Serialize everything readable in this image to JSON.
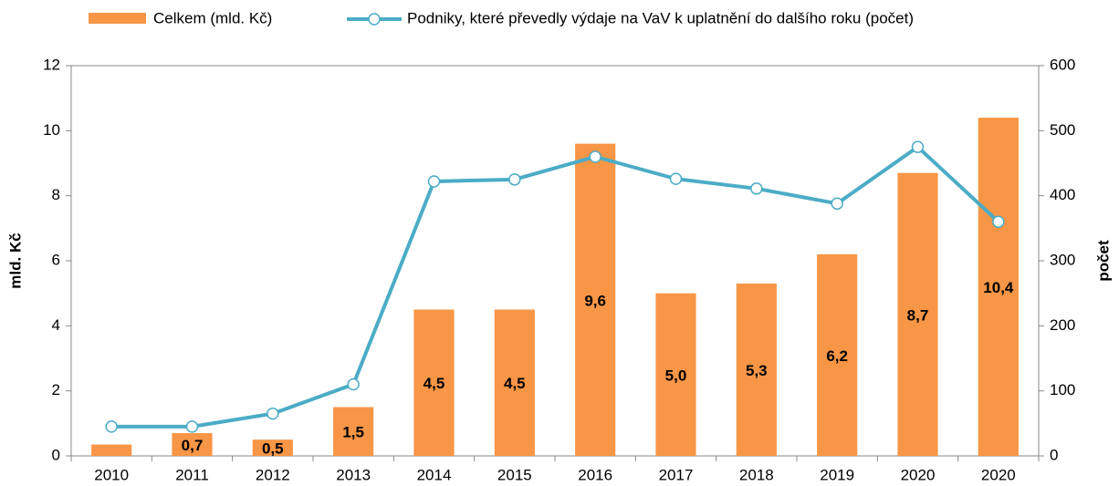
{
  "chart_data": {
    "type": "bar_line",
    "categories": [
      "2010",
      "2011",
      "2012",
      "2013",
      "2014",
      "2015",
      "2016",
      "2017",
      "2018",
      "2019",
      "2020",
      "2020"
    ],
    "series": [
      {
        "name": "Celkem (mld. Kč)",
        "type": "bar",
        "color": "#f79646",
        "values": [
          0.35,
          0.7,
          0.5,
          1.5,
          4.5,
          4.5,
          9.6,
          5.0,
          5.3,
          6.2,
          8.7,
          10.4
        ],
        "value_labels": [
          null,
          "0,7",
          "0,5",
          "1,5",
          "4,5",
          "4,5",
          "9,6",
          "5,0",
          "5,3",
          "6,2",
          "8,7",
          "10,4"
        ]
      },
      {
        "name": "Podniky, které převedly výdaje na VaV k uplatnění do dalšího roku (počet)",
        "type": "line",
        "color": "#4bacc6",
        "axis": "y2",
        "values": [
          45,
          45,
          65,
          110,
          422,
          425,
          460,
          426,
          411,
          388,
          475,
          360
        ]
      }
    ],
    "ylabel": "mld. Kč",
    "y2label": "počet",
    "ylim": [
      0,
      12
    ],
    "yticks": [
      0,
      2,
      4,
      6,
      8,
      10,
      12
    ],
    "y2lim": [
      0,
      600
    ],
    "y2ticks": [
      0,
      100,
      200,
      300,
      400,
      500,
      600
    ],
    "grid": false,
    "legend": "top"
  }
}
